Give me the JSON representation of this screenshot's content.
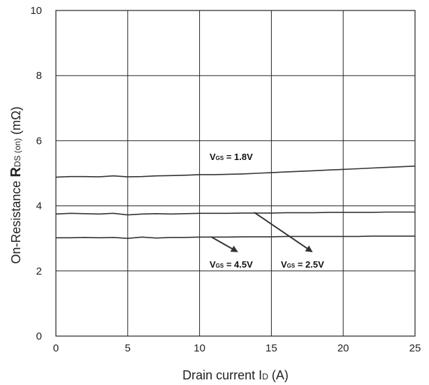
{
  "chart_data": {
    "type": "line",
    "xlabel_main": "Drain current I",
    "xlabel_sub": "D",
    "xlabel_unit": " (A)",
    "ylabel_prefix": "On-Resistance ",
    "ylabel_main": "R",
    "ylabel_sub": "DS (on)",
    "ylabel_unit": " (mΩ)",
    "xlim": [
      0,
      25
    ],
    "ylim": [
      0,
      10
    ],
    "xticks": [
      0,
      5,
      10,
      15,
      20,
      25
    ],
    "yticks": [
      0,
      2,
      4,
      6,
      8,
      10
    ],
    "grid": true,
    "series": [
      {
        "name_main": "V",
        "name_sub": "GS",
        "name_value": " = 1.8V",
        "x": [
          0,
          1,
          2,
          3,
          4,
          5,
          6,
          7,
          8,
          9,
          10,
          11,
          12,
          13,
          14,
          15,
          16,
          17,
          18,
          19,
          20,
          21,
          22,
          23,
          24,
          25
        ],
        "y": [
          4.88,
          4.9,
          4.9,
          4.89,
          4.92,
          4.89,
          4.9,
          4.92,
          4.93,
          4.94,
          4.96,
          4.96,
          4.97,
          4.98,
          5.0,
          5.02,
          5.04,
          5.06,
          5.08,
          5.1,
          5.12,
          5.14,
          5.16,
          5.18,
          5.2,
          5.22
        ]
      },
      {
        "name_main": "V",
        "name_sub": "GS",
        "name_value": " = 2.5V",
        "x": [
          0,
          1,
          2,
          3,
          4,
          5,
          6,
          7,
          8,
          9,
          10,
          11,
          12,
          13,
          14,
          15,
          16,
          17,
          18,
          19,
          20,
          21,
          22,
          23,
          24,
          25
        ],
        "y": [
          3.75,
          3.77,
          3.76,
          3.75,
          3.77,
          3.72,
          3.75,
          3.76,
          3.75,
          3.76,
          3.77,
          3.77,
          3.77,
          3.78,
          3.78,
          3.78,
          3.79,
          3.79,
          3.79,
          3.8,
          3.8,
          3.8,
          3.8,
          3.81,
          3.81,
          3.81
        ]
      },
      {
        "name_main": "V",
        "name_sub": "GS",
        "name_value": " = 4.5V",
        "x": [
          0,
          1,
          2,
          3,
          4,
          5,
          6,
          7,
          8,
          9,
          10,
          11,
          12,
          13,
          14,
          15,
          16,
          17,
          18,
          19,
          20,
          21,
          22,
          23,
          24,
          25
        ],
        "y": [
          3.02,
          3.02,
          3.03,
          3.02,
          3.03,
          3.0,
          3.04,
          3.01,
          3.03,
          3.03,
          3.04,
          3.04,
          3.04,
          3.05,
          3.05,
          3.05,
          3.06,
          3.06,
          3.06,
          3.06,
          3.06,
          3.06,
          3.07,
          3.07,
          3.07,
          3.07
        ]
      }
    ]
  }
}
